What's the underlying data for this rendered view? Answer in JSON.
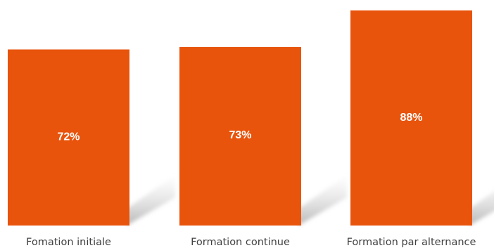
{
  "chart_data": {
    "type": "bar",
    "categories": [
      "Fomation initiale",
      "Formation continue",
      "Formation par alternance"
    ],
    "values": [
      72,
      73,
      88
    ],
    "value_labels": [
      "72%",
      "73%",
      "88%"
    ],
    "title": "",
    "xlabel": "",
    "ylabel": "",
    "ylim": [
      0,
      100
    ],
    "grid": false,
    "legend": "none",
    "colors": {
      "bar": "#E8540C",
      "shadow": "#bdbdbd",
      "label": "#ffffff",
      "category_text": "#404040"
    }
  }
}
